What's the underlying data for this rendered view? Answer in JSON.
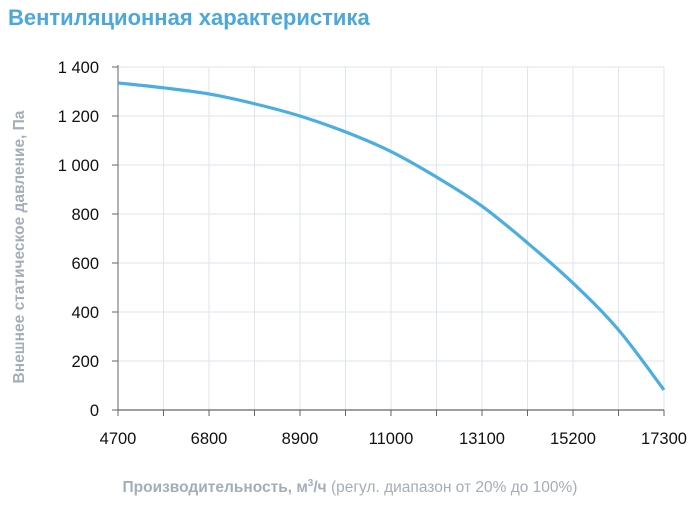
{
  "chart_data": {
    "type": "line",
    "title": "Вентиляционная характеристика",
    "ylabel": "Внешнее статическое давление, Па",
    "xlabel_bold": "Производительность, м",
    "xlabel_sup": "3",
    "xlabel_unit": "/ч",
    "xlabel_rest": " (регул. диапазон от 20% до 100%)",
    "xlim": [
      4700,
      17300
    ],
    "ylim": [
      0,
      1400
    ],
    "x_ticks": [
      "4700",
      "6800",
      "8900",
      "11000",
      "13100",
      "15200",
      "17300"
    ],
    "y_ticks": [
      "0",
      "200",
      "400",
      "600",
      "800",
      "1 000",
      "1 200",
      "1 400"
    ],
    "grid": true,
    "colors": {
      "line": "#4aaee0",
      "title": "#4aa8dc",
      "axis_label": "#a3aeb8",
      "grid": "#dde6ee",
      "axis": "#666666"
    },
    "series": [
      {
        "x": [
          4700,
          5750,
          6800,
          7850,
          8900,
          9950,
          11000,
          12050,
          13100,
          14150,
          15200,
          16250,
          17300
        ],
        "y": [
          1335,
          1315,
          1290,
          1250,
          1200,
          1135,
          1055,
          951,
          832,
          682,
          518,
          327,
          82
        ]
      }
    ]
  }
}
